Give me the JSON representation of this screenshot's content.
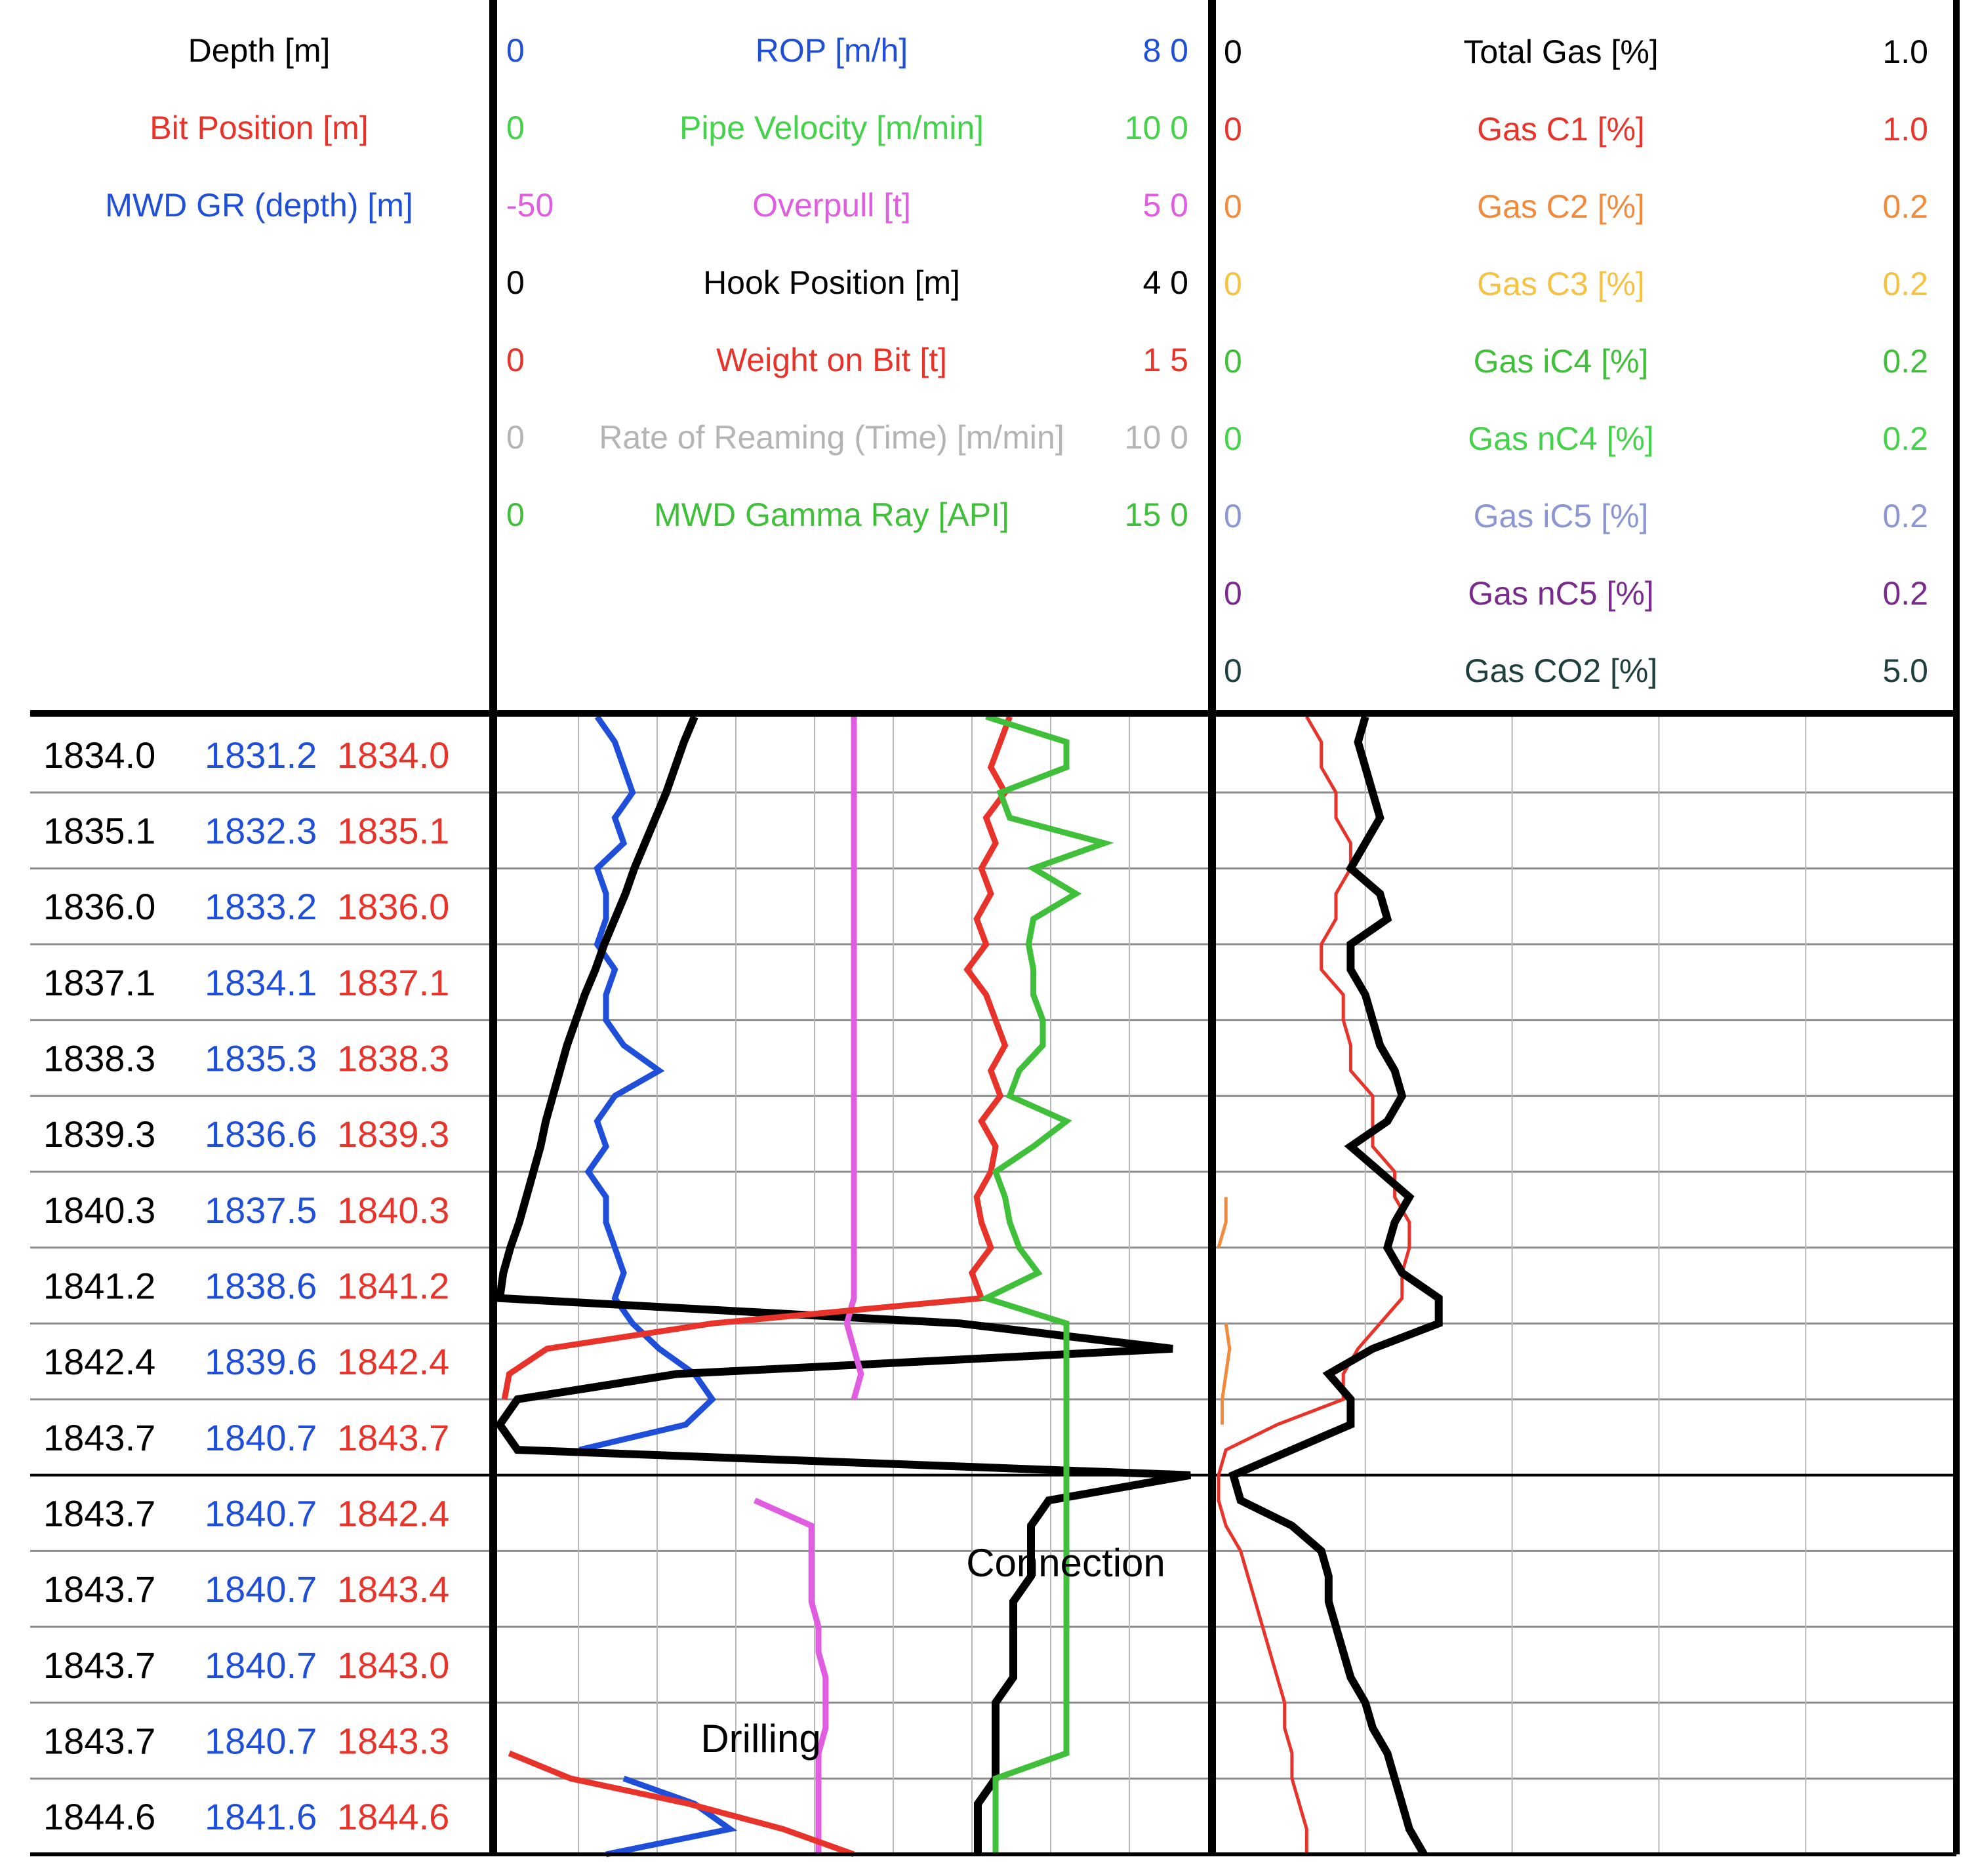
{
  "chart_data": {
    "type": "line",
    "header": {
      "depth_track": [
        {
          "label": "Depth  [m]",
          "color": "#000000"
        },
        {
          "label": "Bit Position  [m]",
          "color": "#e8332a"
        },
        {
          "label": "MWD GR (depth)  [m]",
          "color": "#1f4fd8"
        }
      ],
      "drilling_track": [
        {
          "min": "0",
          "label": "ROP  [m/h]",
          "max": "8 0",
          "color": "#1f4fd8"
        },
        {
          "min": "0",
          "label": "Pipe Velocity  [m/min]",
          "max": "10 0",
          "color": "#44d24a"
        },
        {
          "min": "-50",
          "label": "Overpull  [t]",
          "max": "5 0",
          "color": "#e05ce0"
        },
        {
          "min": "0",
          "label": "Hook Position  [m]",
          "max": "4 0",
          "color": "#000000"
        },
        {
          "min": "0",
          "label": "Weight on Bit  [t]",
          "max": "1 5",
          "color": "#e8332a"
        },
        {
          "min": "0",
          "label": "Rate of Reaming (Time)  [m/min]",
          "max": "10 0",
          "color": "#b4b4b4"
        },
        {
          "min": "0",
          "label": "MWD Gamma Ray  [API]",
          "max": "15 0",
          "color": "#3fbf3a"
        }
      ],
      "gas_track": [
        {
          "min": "0",
          "label": "Total Gas  [%]",
          "max": "1.0",
          "color": "#000000"
        },
        {
          "min": "0",
          "label": "Gas C1  [%]",
          "max": "1.0",
          "color": "#e8332a"
        },
        {
          "min": "0",
          "label": "Gas C2  [%]",
          "max": "0.2",
          "color": "#f08a3c"
        },
        {
          "min": "0",
          "label": "Gas C3  [%]",
          "max": "0.2",
          "color": "#f5c242"
        },
        {
          "min": "0",
          "label": "Gas iC4  [%]",
          "max": "0.2",
          "color": "#3fbf3a"
        },
        {
          "min": "0",
          "label": "Gas nC4  [%]",
          "max": "0.2",
          "color": "#44d24a"
        },
        {
          "min": "0",
          "label": "Gas iC5  [%]",
          "max": "0.2",
          "color": "#8c96d2"
        },
        {
          "min": "0",
          "label": "Gas nC5  [%]",
          "max": "0.2",
          "color": "#7a2a8c"
        },
        {
          "min": "0",
          "label": "Gas CO2  [%]",
          "max": "5.0",
          "color": "#1f3f3f"
        }
      ]
    },
    "depth_rows": [
      {
        "depth": "1834.0",
        "gr": "1831.2",
        "bit": "1834.0"
      },
      {
        "depth": "1835.1",
        "gr": "1832.3",
        "bit": "1835.1"
      },
      {
        "depth": "1836.0",
        "gr": "1833.2",
        "bit": "1836.0"
      },
      {
        "depth": "1837.1",
        "gr": "1834.1",
        "bit": "1837.1"
      },
      {
        "depth": "1838.3",
        "gr": "1835.3",
        "bit": "1838.3"
      },
      {
        "depth": "1839.3",
        "gr": "1836.6",
        "bit": "1839.3"
      },
      {
        "depth": "1840.3",
        "gr": "1837.5",
        "bit": "1840.3"
      },
      {
        "depth": "1841.2",
        "gr": "1838.6",
        "bit": "1841.2"
      },
      {
        "depth": "1842.4",
        "gr": "1839.6",
        "bit": "1842.4"
      },
      {
        "depth": "1843.7",
        "gr": "1840.7",
        "bit": "1843.7"
      },
      {
        "depth": "1843.7",
        "gr": "1840.7",
        "bit": "1842.4"
      },
      {
        "depth": "1843.7",
        "gr": "1840.7",
        "bit": "1843.4"
      },
      {
        "depth": "1843.7",
        "gr": "1840.7",
        "bit": "1843.0"
      },
      {
        "depth": "1843.7",
        "gr": "1840.7",
        "bit": "1843.3"
      },
      {
        "depth": "1844.6",
        "gr": "1841.6",
        "bit": "1844.6"
      }
    ],
    "annotations": [
      "Connection",
      "Drilling"
    ],
    "x": [
      0,
      0.4,
      0.8,
      1.2,
      1.6,
      2.0,
      2.4,
      2.8,
      3.2,
      3.6,
      4.0,
      4.4,
      4.8,
      5.2,
      5.6,
      6.0,
      6.4,
      6.8,
      7.2,
      7.6,
      8.0,
      8.4,
      8.8,
      9.2,
      9.6,
      10.0,
      10.4,
      10.8,
      11.2,
      11.6,
      12.0,
      12.4,
      12.8,
      13.2,
      13.6,
      14.0,
      14.4,
      14.8,
      15.2,
      15.6,
      16.0,
      16.4,
      16.8,
      17.2,
      17.6,
      18.0
    ],
    "series": [
      {
        "name": "ROP",
        "track": "drilling",
        "min": 0,
        "max": 80,
        "color": "#1f4fd8",
        "values": [
          11,
          13,
          14,
          15,
          13,
          14,
          11,
          12,
          12,
          11,
          13,
          12,
          12,
          14,
          18,
          13,
          11,
          12,
          10,
          12,
          12,
          13,
          14,
          13,
          15,
          18,
          22,
          24,
          21,
          9,
          null,
          null,
          null,
          null,
          null,
          null,
          null,
          null,
          null,
          null,
          null,
          null,
          14,
          22,
          26,
          12
        ]
      },
      {
        "name": "Hook Position",
        "track": "drilling",
        "min": 0,
        "max": 40,
        "color": "#000000",
        "values": [
          11,
          10.4,
          9.9,
          9.4,
          8.8,
          8.2,
          7.6,
          7.1,
          6.5,
          5.9,
          5.4,
          4.8,
          4.3,
          3.8,
          3.4,
          3.0,
          2.6,
          2.3,
          1.9,
          1.5,
          1.1,
          0.6,
          0.2,
          0,
          26,
          38,
          10,
          1,
          0,
          1,
          39,
          31,
          30,
          30,
          30,
          29,
          29,
          29,
          29,
          28,
          28,
          28,
          28,
          27,
          27,
          27
        ]
      },
      {
        "name": "Overpull",
        "track": "drilling",
        "min": -50,
        "max": 50,
        "color": "#e05ce0",
        "values": [
          0,
          0,
          0,
          0,
          0,
          0,
          0,
          0,
          0,
          0,
          0,
          0,
          0,
          0,
          0,
          0,
          0,
          0,
          0,
          0,
          0,
          0,
          0,
          0,
          -1,
          0,
          1,
          0,
          null,
          null,
          null,
          -14,
          -6,
          -6,
          -6,
          -6,
          -5,
          -5,
          -4,
          -4,
          -4,
          -5,
          -5,
          -5,
          -5,
          -5
        ]
      },
      {
        "name": "Weight on Bit",
        "track": "drilling",
        "min": 0,
        "max": 15,
        "color": "#e8332a",
        "values": [
          10.8,
          10.6,
          10.4,
          10.7,
          10.3,
          10.5,
          10.2,
          10.4,
          10.1,
          10.3,
          9.9,
          10.3,
          10.5,
          10.7,
          10.4,
          10.6,
          10.2,
          10.5,
          10.4,
          10.1,
          10.2,
          10.4,
          10.0,
          10.2,
          4.5,
          1.0,
          0.2,
          0.1,
          null,
          null,
          null,
          null,
          null,
          null,
          null,
          null,
          null,
          null,
          null,
          null,
          null,
          0.2,
          1.5,
          4,
          6,
          7.5
        ]
      },
      {
        "name": "MWD Gamma Ray",
        "track": "drilling",
        "min": 0,
        "max": 150,
        "color": "#3fbf3a",
        "values": [
          103,
          120,
          120,
          106,
          108,
          128,
          113,
          122,
          113,
          112,
          113,
          113,
          115,
          115,
          110,
          108,
          120,
          113,
          105,
          107,
          108,
          110,
          114,
          103,
          120,
          120,
          120,
          120,
          120,
          120,
          120,
          120,
          120,
          120,
          120,
          120,
          120,
          120,
          120,
          120,
          120,
          120,
          105,
          105,
          105,
          105
        ]
      },
      {
        "name": "Gas C1",
        "track": "gas",
        "min": 0,
        "max": 1.0,
        "color": "#e8332a",
        "values": [
          0.12,
          0.14,
          0.14,
          0.16,
          0.16,
          0.18,
          0.18,
          0.16,
          0.16,
          0.14,
          0.14,
          0.17,
          0.17,
          0.18,
          0.18,
          0.21,
          0.21,
          0.21,
          0.24,
          0.24,
          0.26,
          0.26,
          0.25,
          0.25,
          0.22,
          0.19,
          0.17,
          0.17,
          0.08,
          0.01,
          0,
          0,
          0.01,
          0.03,
          0.04,
          0.05,
          0.06,
          0.07,
          0.08,
          0.09,
          0.09,
          0.1,
          0.1,
          0.11,
          0.12,
          0.12
        ]
      },
      {
        "name": "Gas C2",
        "track": "gas",
        "min": 0,
        "max": 0.2,
        "color": "#f08a3c",
        "values": [
          null,
          null,
          null,
          null,
          null,
          null,
          null,
          null,
          null,
          null,
          null,
          null,
          null,
          null,
          null,
          null,
          null,
          null,
          null,
          0.002,
          0.002,
          0,
          null,
          null,
          0.002,
          0.003,
          0.002,
          0.001,
          0.001,
          null,
          null,
          null,
          null,
          null,
          null,
          null,
          null,
          null,
          null,
          null,
          null,
          null,
          null,
          null,
          null,
          null
        ]
      },
      {
        "name": "Total Gas",
        "track": "gas",
        "min": 0,
        "max": 1.0,
        "color": "#000000",
        "values": [
          0.2,
          0.19,
          0.2,
          0.21,
          0.22,
          0.2,
          0.18,
          0.22,
          0.23,
          0.18,
          0.18,
          0.2,
          0.21,
          0.22,
          0.24,
          0.25,
          0.23,
          0.18,
          0.22,
          0.26,
          0.24,
          0.23,
          0.25,
          0.3,
          0.3,
          0.21,
          0.15,
          0.18,
          0.18,
          0.1,
          0.02,
          0.03,
          0.1,
          0.14,
          0.15,
          0.15,
          0.16,
          0.17,
          0.18,
          0.2,
          0.21,
          0.23,
          0.24,
          0.25,
          0.26,
          0.28
        ]
      }
    ]
  }
}
